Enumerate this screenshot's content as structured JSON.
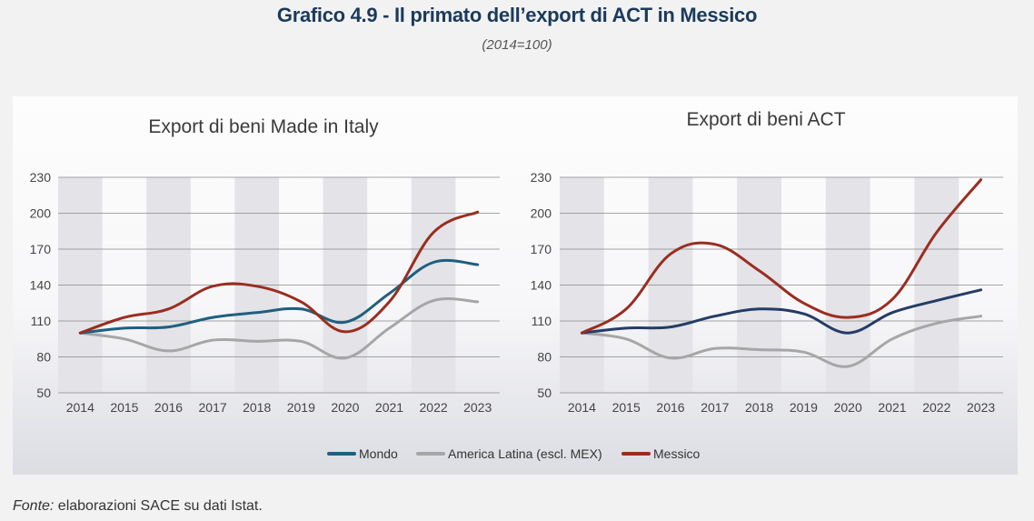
{
  "header": {
    "title": "Grafico 4.9 - Il primato dell’export di ACT in Messico",
    "subtitle": "(2014=100)"
  },
  "footer": {
    "prefix": "Fonte:",
    "text": " elaborazioni SACE su dati Istat."
  },
  "colors": {
    "mondo": "#1f5f7f",
    "mondo_act": "#243c66",
    "america_latina": "#a6a6a6",
    "messico": "#9a2d1f",
    "band": "#e3e3e8"
  },
  "legend": [
    {
      "label": "Mondo",
      "color": "#1f5f7f"
    },
    {
      "label": "America Latina (escl. MEX)",
      "color": "#a6a6a6"
    },
    {
      "label": "Messico",
      "color": "#9a2d1f"
    }
  ],
  "chart_data": [
    {
      "type": "line",
      "title": "Export di beni Made in Italy",
      "x": [
        "2014",
        "2015",
        "2016",
        "2017",
        "2018",
        "2019",
        "2020",
        "2021",
        "2022",
        "2023"
      ],
      "ylim": [
        50,
        230
      ],
      "yticks": [
        230,
        200,
        170,
        140,
        110,
        80,
        50
      ],
      "grid": true,
      "legend_position": "bottom",
      "series": [
        {
          "name": "Mondo",
          "color": "#1f5f7f",
          "values": [
            100,
            104,
            105,
            113,
            117,
            120,
            109,
            133,
            159,
            157
          ]
        },
        {
          "name": "America Latina (escl. MEX)",
          "color": "#a6a6a6",
          "values": [
            100,
            95,
            85,
            94,
            93,
            93,
            79,
            104,
            127,
            126
          ]
        },
        {
          "name": "Messico",
          "color": "#9a2d1f",
          "values": [
            100,
            113,
            120,
            139,
            139,
            126,
            101,
            126,
            184,
            201
          ]
        }
      ]
    },
    {
      "type": "line",
      "title": "Export di beni ACT",
      "x": [
        "2014",
        "2015",
        "2016",
        "2017",
        "2018",
        "2019",
        "2020",
        "2021",
        "2022",
        "2023"
      ],
      "ylim": [
        50,
        230
      ],
      "yticks": [
        230,
        200,
        170,
        140,
        110,
        80,
        50
      ],
      "grid": true,
      "legend_position": "bottom",
      "series": [
        {
          "name": "Mondo",
          "color": "#243c66",
          "values": [
            100,
            104,
            105,
            114,
            120,
            116,
            100,
            117,
            127,
            136
          ]
        },
        {
          "name": "America Latina (escl. MEX)",
          "color": "#a6a6a6",
          "values": [
            100,
            95,
            79,
            87,
            86,
            84,
            72,
            95,
            108,
            114
          ]
        },
        {
          "name": "Messico",
          "color": "#9a2d1f",
          "values": [
            100,
            120,
            166,
            174,
            152,
            125,
            113,
            128,
            184,
            228
          ]
        }
      ]
    }
  ]
}
